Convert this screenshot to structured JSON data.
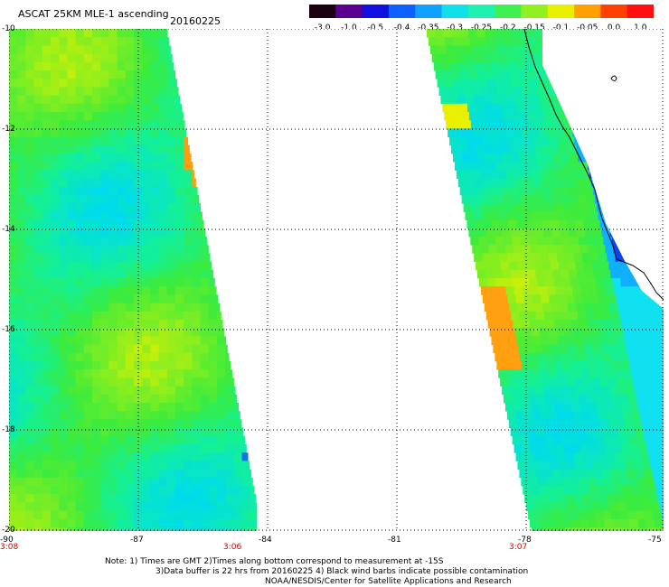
{
  "header": {
    "title": "ASCAT 25KM MLE-1 ascending",
    "date": "20160225"
  },
  "colorbar": {
    "labels": [
      "-3.0",
      "-1.0",
      "-0.5",
      "-0.4",
      "-0.35",
      "-0.3",
      "-0.25",
      "-0.2",
      "-0.15",
      "-0.1",
      "-0.05",
      "0.0",
      "1.0"
    ],
    "colors": [
      "#1a0010",
      "#5a0090",
      "#1010e0",
      "#1060ff",
      "#10a0ff",
      "#10e0e8",
      "#20f0b0",
      "#40f050",
      "#90f020",
      "#e8f000",
      "#ffa000",
      "#ff4000",
      "#ff1010"
    ]
  },
  "map": {
    "lat_labels": [
      "-10",
      "-12",
      "-14",
      "-16",
      "-18",
      "-20"
    ],
    "lon_labels": [
      "-90",
      "-87",
      "-84",
      "-81",
      "-78",
      "-75"
    ],
    "pass_times": [
      "3:08",
      "3:06",
      "3:07"
    ]
  },
  "notes": {
    "line1": "Note: 1) Times are GMT 2)Times along bottom correspond to measurement at -15S",
    "line2": "3)Data buffer is 22 hrs from 20160225 4) Black wind barbs indicate possible contamination",
    "line3": "NOAA/NESDIS/Center for Satellite Applications and Research"
  }
}
